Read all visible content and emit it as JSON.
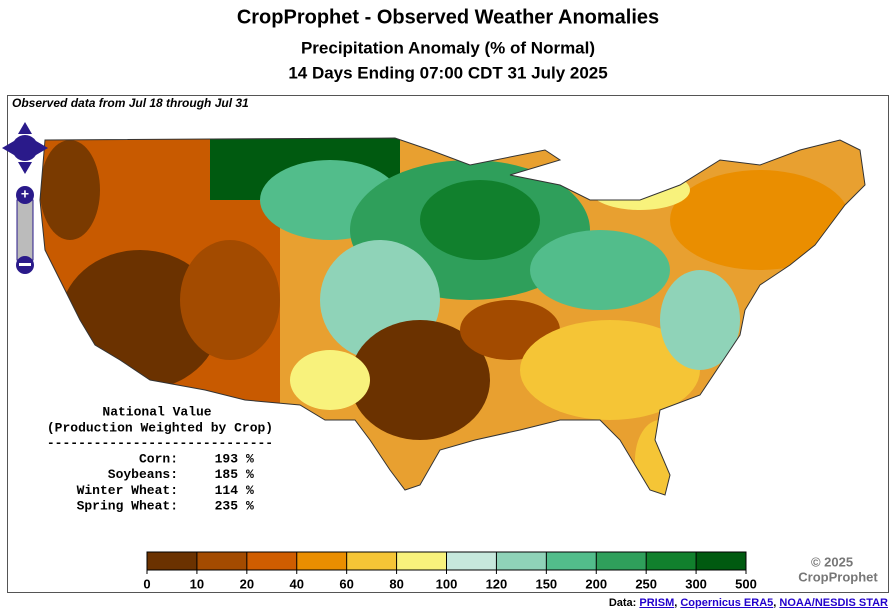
{
  "header": {
    "title": "CropProphet - Observed Weather Anomalies",
    "subtitle": "Precipitation Anomaly (% of Normal)",
    "period": "14 Days Ending 07:00 CDT 31 July 2025"
  },
  "map": {
    "note": "Observed data from Jul 18 through Jul 31"
  },
  "national": {
    "title": "National Value",
    "subtitle": "(Production Weighted by Crop)",
    "rule": "-----------------------------",
    "rows": [
      {
        "crop": "Corn:",
        "value": 193,
        "unit": "%"
      },
      {
        "crop": "Soybeans:",
        "value": 185,
        "unit": "%"
      },
      {
        "crop": "Winter Wheat:",
        "value": 114,
        "unit": "%"
      },
      {
        "crop": "Spring Wheat:",
        "value": 235,
        "unit": "%"
      }
    ]
  },
  "legend": {
    "ticks": [
      0,
      10,
      20,
      40,
      60,
      80,
      100,
      120,
      150,
      200,
      250,
      300,
      500
    ],
    "colors": [
      "#6b3200",
      "#a34b00",
      "#cf5d00",
      "#ea8e00",
      "#f5c536",
      "#f8f27c",
      "#c6e8dc",
      "#8fd3b8",
      "#52bd8b",
      "#2f9f5b",
      "#11802d",
      "#005a10"
    ]
  },
  "credit": {
    "copyright": "© 2025",
    "owner": "CropProphet"
  },
  "footer": {
    "prefix": "Data:",
    "sources": [
      "PRISM",
      "Copernicus ERA5",
      "NOAA/NESDIS STAR"
    ],
    "separator": ","
  }
}
